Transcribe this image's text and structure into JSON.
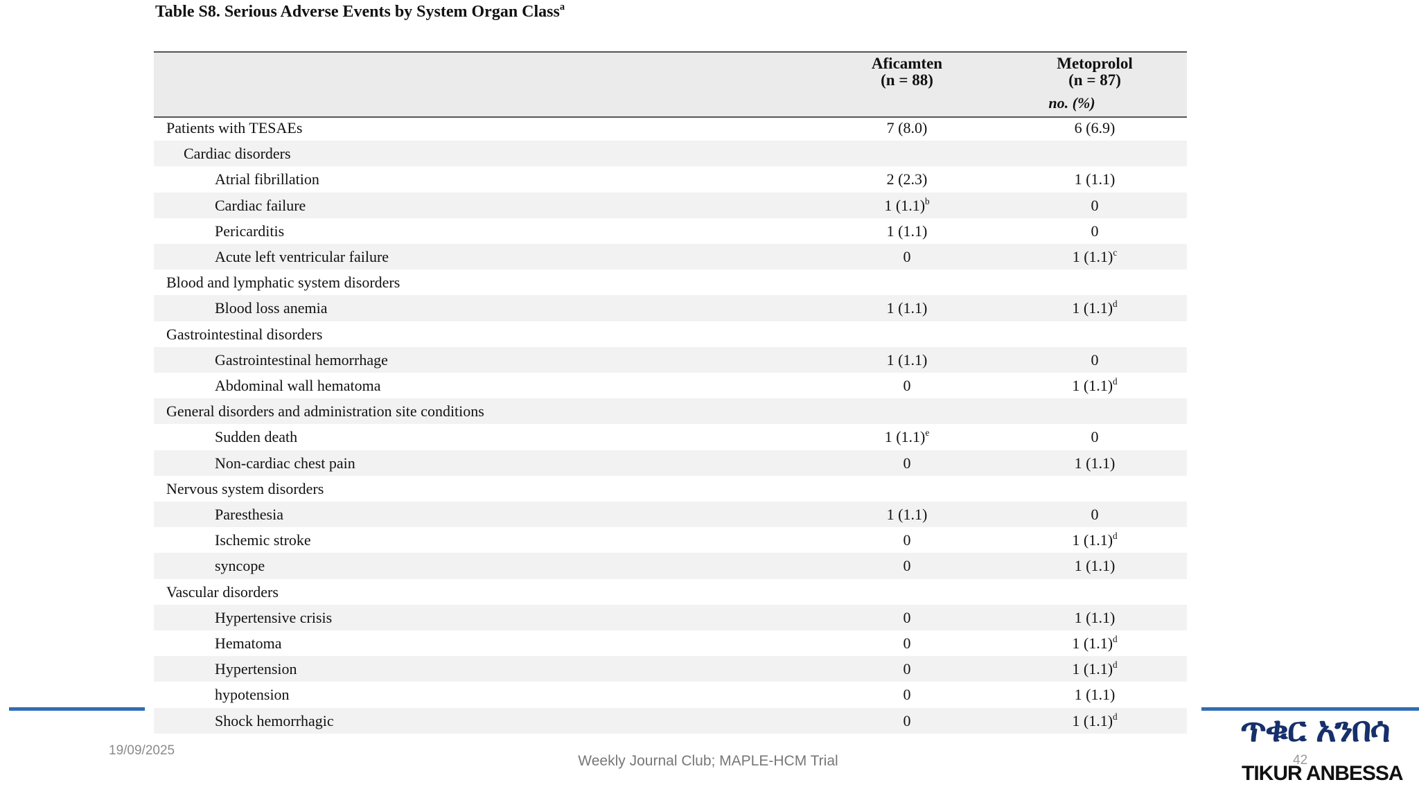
{
  "header": {
    "title": "Table S8. Serious Adverse Events by System Organ Class",
    "title_note": "a"
  },
  "table": {
    "columns": [
      {
        "name": "Aficamten",
        "n": "(n = 88)"
      },
      {
        "name": "Metoprolol",
        "n": "(n = 87)"
      }
    ],
    "unit": "no. (%)",
    "total": {
      "label": "Patients with TESAEs",
      "aficamten": "7 (8.0)",
      "metoprolol": "6 (6.9)"
    },
    "groups": [
      {
        "name": "Cardiac disorders",
        "items": [
          {
            "label": "Atrial fibrillation",
            "aficamten": "2 (2.3)",
            "metoprolol": "1 (1.1)"
          },
          {
            "label": "Cardiac failure",
            "aficamten": "1 (1.1)",
            "aficamten_note": "b",
            "metoprolol": "0"
          },
          {
            "label": "Pericarditis",
            "aficamten": "1 (1.1)",
            "metoprolol": "0"
          },
          {
            "label": "Acute left ventricular failure",
            "aficamten": "0",
            "metoprolol": "1 (1.1)",
            "metoprolol_note": "c"
          }
        ]
      },
      {
        "name": "Blood and lymphatic system disorders",
        "items": [
          {
            "label": "Blood loss anemia",
            "aficamten": "1 (1.1)",
            "metoprolol": "1 (1.1)",
            "metoprolol_note": "d"
          }
        ]
      },
      {
        "name": "Gastrointestinal disorders",
        "items": [
          {
            "label": "Gastrointestinal hemorrhage",
            "aficamten": "1 (1.1)",
            "metoprolol": "0"
          },
          {
            "label": "Abdominal wall hematoma",
            "aficamten": "0",
            "metoprolol": "1 (1.1)",
            "metoprolol_note": "d"
          }
        ]
      },
      {
        "name": "General disorders and administration site conditions",
        "items": [
          {
            "label": "Sudden death",
            "aficamten": "1 (1.1)",
            "aficamten_note": "e",
            "metoprolol": "0"
          },
          {
            "label": "Non-cardiac chest pain",
            "aficamten": "0",
            "metoprolol": "1 (1.1)"
          }
        ]
      },
      {
        "name": "Nervous system disorders",
        "items": [
          {
            "label": "Paresthesia",
            "aficamten": "1 (1.1)",
            "metoprolol": "0"
          },
          {
            "label": "Ischemic stroke",
            "aficamten": "0",
            "metoprolol": "1 (1.1)",
            "metoprolol_note": "d"
          },
          {
            "label": "syncope",
            "aficamten": "0",
            "metoprolol": "1 (1.1)"
          }
        ]
      },
      {
        "name": "Vascular disorders",
        "items": [
          {
            "label": "Hypertensive crisis",
            "aficamten": "0",
            "metoprolol": "1 (1.1)"
          },
          {
            "label": "Hematoma",
            "aficamten": "0",
            "metoprolol": "1 (1.1)",
            "metoprolol_note": "d"
          },
          {
            "label": "Hypertension",
            "aficamten": "0",
            "metoprolol": "1 (1.1)",
            "metoprolol_note": "d"
          },
          {
            "label": "hypotension",
            "aficamten": "0",
            "metoprolol": "1 (1.1)"
          },
          {
            "label": "Shock hemorrhagic",
            "aficamten": "0",
            "metoprolol": "1 (1.1)",
            "metoprolol_note": "d"
          }
        ]
      }
    ]
  },
  "footer": {
    "date": "19/09/2025",
    "text": "Weekly Journal Club; MAPLE-HCM Trial",
    "page": "42"
  },
  "logo": {
    "amharic": "ጥቁር አንበሳ",
    "latin": "TIKUR ANBESSA"
  }
}
